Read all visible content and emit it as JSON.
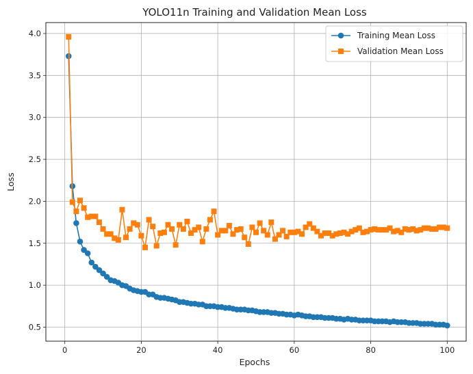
{
  "chart_data": {
    "type": "line",
    "title": "YOLO11n Training and Validation Mean Loss",
    "xlabel": "Epochs",
    "ylabel": "Loss",
    "xlim": [
      -4.95,
      104.95
    ],
    "ylim": [
      0.333,
      4.13
    ],
    "xticks": [
      0,
      20,
      40,
      60,
      80,
      100
    ],
    "yticks": [
      0.5,
      1.0,
      1.5,
      2.0,
      2.5,
      3.0,
      3.5,
      4.0
    ],
    "ytick_labels": [
      "0.5",
      "1.0",
      "1.5",
      "2.0",
      "2.5",
      "3.0",
      "3.5",
      "4.0"
    ],
    "grid": true,
    "legend_position": "top-right",
    "x": [
      1,
      2,
      3,
      4,
      5,
      6,
      7,
      8,
      9,
      10,
      11,
      12,
      13,
      14,
      15,
      16,
      17,
      18,
      19,
      20,
      21,
      22,
      23,
      24,
      25,
      26,
      27,
      28,
      29,
      30,
      31,
      32,
      33,
      34,
      35,
      36,
      37,
      38,
      39,
      40,
      41,
      42,
      43,
      44,
      45,
      46,
      47,
      48,
      49,
      50,
      51,
      52,
      53,
      54,
      55,
      56,
      57,
      58,
      59,
      60,
      61,
      62,
      63,
      64,
      65,
      66,
      67,
      68,
      69,
      70,
      71,
      72,
      73,
      74,
      75,
      76,
      77,
      78,
      79,
      80,
      81,
      82,
      83,
      84,
      85,
      86,
      87,
      88,
      89,
      90,
      91,
      92,
      93,
      94,
      95,
      96,
      97,
      98,
      99,
      100
    ],
    "series": [
      {
        "name": "Training Mean Loss",
        "color": "#1f77b4",
        "marker": "circle",
        "values": [
          3.73,
          2.18,
          1.74,
          1.52,
          1.42,
          1.38,
          1.27,
          1.22,
          1.18,
          1.14,
          1.1,
          1.06,
          1.05,
          1.03,
          1.0,
          0.99,
          0.96,
          0.94,
          0.93,
          0.92,
          0.92,
          0.89,
          0.89,
          0.86,
          0.85,
          0.85,
          0.84,
          0.83,
          0.82,
          0.8,
          0.8,
          0.79,
          0.78,
          0.78,
          0.77,
          0.77,
          0.75,
          0.75,
          0.75,
          0.74,
          0.74,
          0.73,
          0.73,
          0.72,
          0.71,
          0.71,
          0.71,
          0.7,
          0.7,
          0.69,
          0.68,
          0.68,
          0.68,
          0.67,
          0.67,
          0.66,
          0.66,
          0.65,
          0.65,
          0.64,
          0.65,
          0.64,
          0.63,
          0.63,
          0.62,
          0.62,
          0.62,
          0.61,
          0.61,
          0.61,
          0.6,
          0.6,
          0.59,
          0.6,
          0.59,
          0.59,
          0.58,
          0.58,
          0.58,
          0.58,
          0.57,
          0.57,
          0.57,
          0.57,
          0.56,
          0.57,
          0.56,
          0.56,
          0.56,
          0.55,
          0.55,
          0.55,
          0.54,
          0.54,
          0.54,
          0.54,
          0.53,
          0.53,
          0.53,
          0.52
        ]
      },
      {
        "name": "Validation Mean Loss",
        "color": "#ff7f0e",
        "marker": "square",
        "values": [
          3.96,
          1.99,
          1.88,
          2.01,
          1.92,
          1.81,
          1.82,
          1.82,
          1.75,
          1.67,
          1.61,
          1.61,
          1.56,
          1.54,
          1.9,
          1.57,
          1.67,
          1.74,
          1.72,
          1.59,
          1.45,
          1.78,
          1.7,
          1.47,
          1.62,
          1.63,
          1.72,
          1.67,
          1.48,
          1.72,
          1.67,
          1.76,
          1.62,
          1.66,
          1.69,
          1.52,
          1.67,
          1.78,
          1.88,
          1.6,
          1.65,
          1.65,
          1.71,
          1.61,
          1.66,
          1.67,
          1.57,
          1.49,
          1.69,
          1.63,
          1.74,
          1.65,
          1.6,
          1.75,
          1.55,
          1.6,
          1.65,
          1.58,
          1.63,
          1.63,
          1.64,
          1.61,
          1.69,
          1.73,
          1.68,
          1.64,
          1.59,
          1.62,
          1.62,
          1.59,
          1.61,
          1.62,
          1.63,
          1.61,
          1.64,
          1.66,
          1.68,
          1.63,
          1.64,
          1.66,
          1.67,
          1.66,
          1.66,
          1.66,
          1.68,
          1.64,
          1.65,
          1.63,
          1.67,
          1.66,
          1.67,
          1.65,
          1.66,
          1.68,
          1.68,
          1.67,
          1.67,
          1.69,
          1.69,
          1.68
        ]
      }
    ]
  }
}
